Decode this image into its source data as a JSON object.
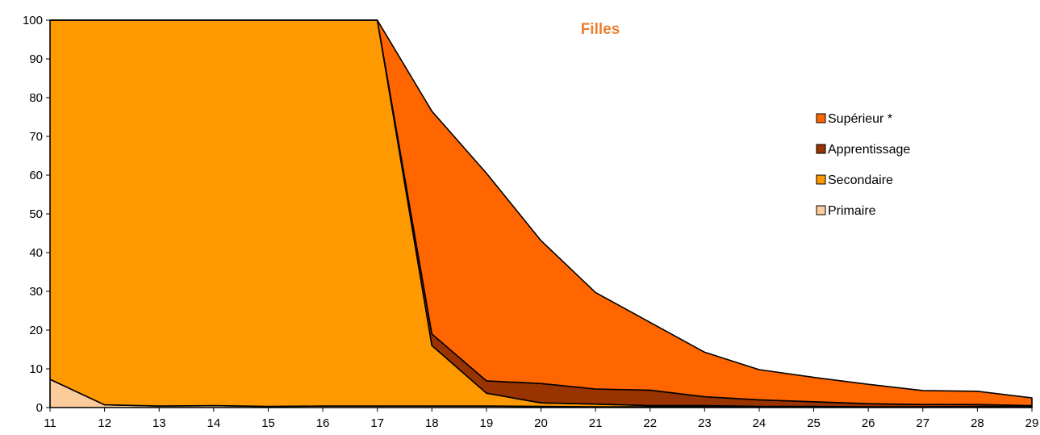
{
  "chart_data": {
    "type": "area",
    "stacked": true,
    "title": "Filles",
    "title_color": "#ED7D31",
    "xlabel": "",
    "ylabel": "",
    "x": [
      11,
      12,
      13,
      14,
      15,
      16,
      17,
      18,
      19,
      20,
      21,
      22,
      23,
      24,
      25,
      26,
      27,
      28,
      29
    ],
    "ylim": [
      0,
      100
    ],
    "yticks": [
      0,
      10,
      20,
      30,
      40,
      50,
      60,
      70,
      80,
      90,
      100
    ],
    "grid": false,
    "legend_position": "right",
    "series": [
      {
        "name": "Primaire",
        "color": "#FBCB9C",
        "values": [
          7.3,
          0.7,
          0.4,
          0.5,
          0.3,
          0.4,
          0.4,
          0.4,
          0.4,
          0.3,
          0.2,
          0.2,
          0.2,
          0.1,
          0.1,
          0.1,
          0.1,
          0.1,
          0.1
        ]
      },
      {
        "name": "Secondaire",
        "color": "#FF9900",
        "values": [
          92.7,
          99.3,
          99.6,
          99.5,
          99.7,
          99.6,
          99.6,
          15.6,
          3.3,
          0.9,
          0.7,
          0.3,
          0.3,
          0.2,
          0.2,
          0.1,
          0.1,
          0.2,
          0.1
        ]
      },
      {
        "name": "Apprentissage",
        "color": "#993300",
        "values": [
          0,
          0,
          0,
          0,
          0,
          0,
          0,
          3.0,
          3.2,
          5.0,
          3.9,
          4.0,
          2.3,
          1.7,
          1.2,
          0.8,
          0.6,
          0.5,
          0.3
        ]
      },
      {
        "name": "Supérieur *",
        "color": "#FF6600",
        "values": [
          0,
          0,
          0,
          0,
          0,
          0,
          0.2,
          57.5,
          53.6,
          36.9,
          24.9,
          17.5,
          11.5,
          7.8,
          6.3,
          5.0,
          3.6,
          3.4,
          2.0
        ]
      }
    ],
    "legend_order": [
      "Supérieur *",
      "Apprentissage",
      "Secondaire",
      "Primaire"
    ]
  }
}
